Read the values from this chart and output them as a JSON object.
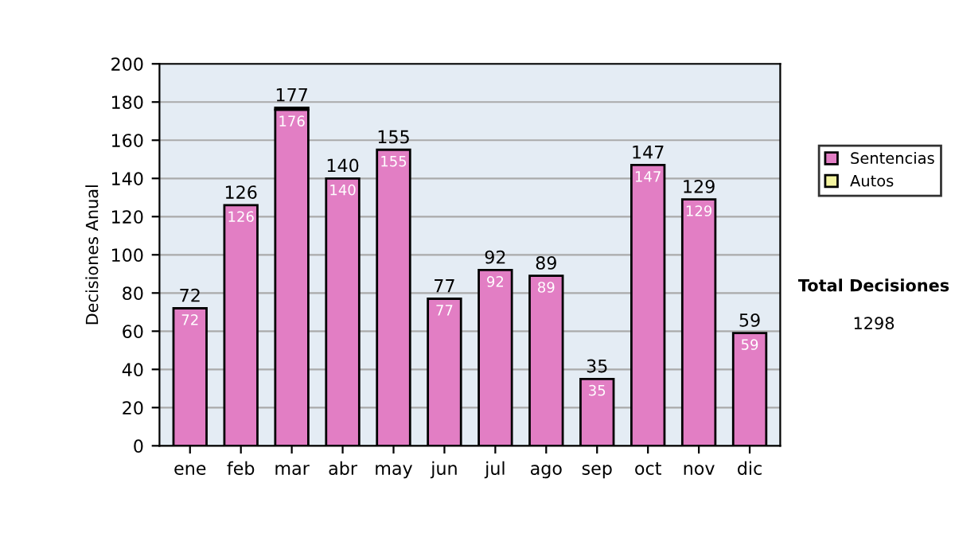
{
  "chart_data": {
    "type": "bar",
    "ylabel": "Decisiones Anual",
    "categories": [
      "ene",
      "feb",
      "mar",
      "abr",
      "may",
      "jun",
      "jul",
      "ago",
      "sep",
      "oct",
      "nov",
      "dic"
    ],
    "series": [
      {
        "name": "Sentencias",
        "color": "#e27ec4",
        "values": [
          72,
          126,
          176,
          140,
          155,
          77,
          92,
          89,
          35,
          147,
          129,
          59
        ],
        "value_labels": [
          "72",
          "126",
          "176",
          "140",
          "155",
          "77",
          "92",
          "89",
          "35",
          "147",
          "129",
          "59"
        ]
      },
      {
        "name": "Autos",
        "color": "#f5f5a0",
        "values": [
          0,
          0,
          1,
          0,
          0,
          0,
          0,
          0,
          0,
          0,
          0,
          0
        ]
      }
    ],
    "stacked": true,
    "totals": [
      "72",
      "126",
      "177",
      "140",
      "155",
      "77",
      "92",
      "89",
      "35",
      "147",
      "129",
      "59"
    ],
    "ylim": [
      0,
      200
    ],
    "yticks": [
      0,
      20,
      40,
      60,
      80,
      100,
      120,
      140,
      160,
      180,
      200
    ],
    "grid": "y",
    "legend": "right",
    "annotations": [
      "Total Decisiones",
      "1298"
    ]
  }
}
